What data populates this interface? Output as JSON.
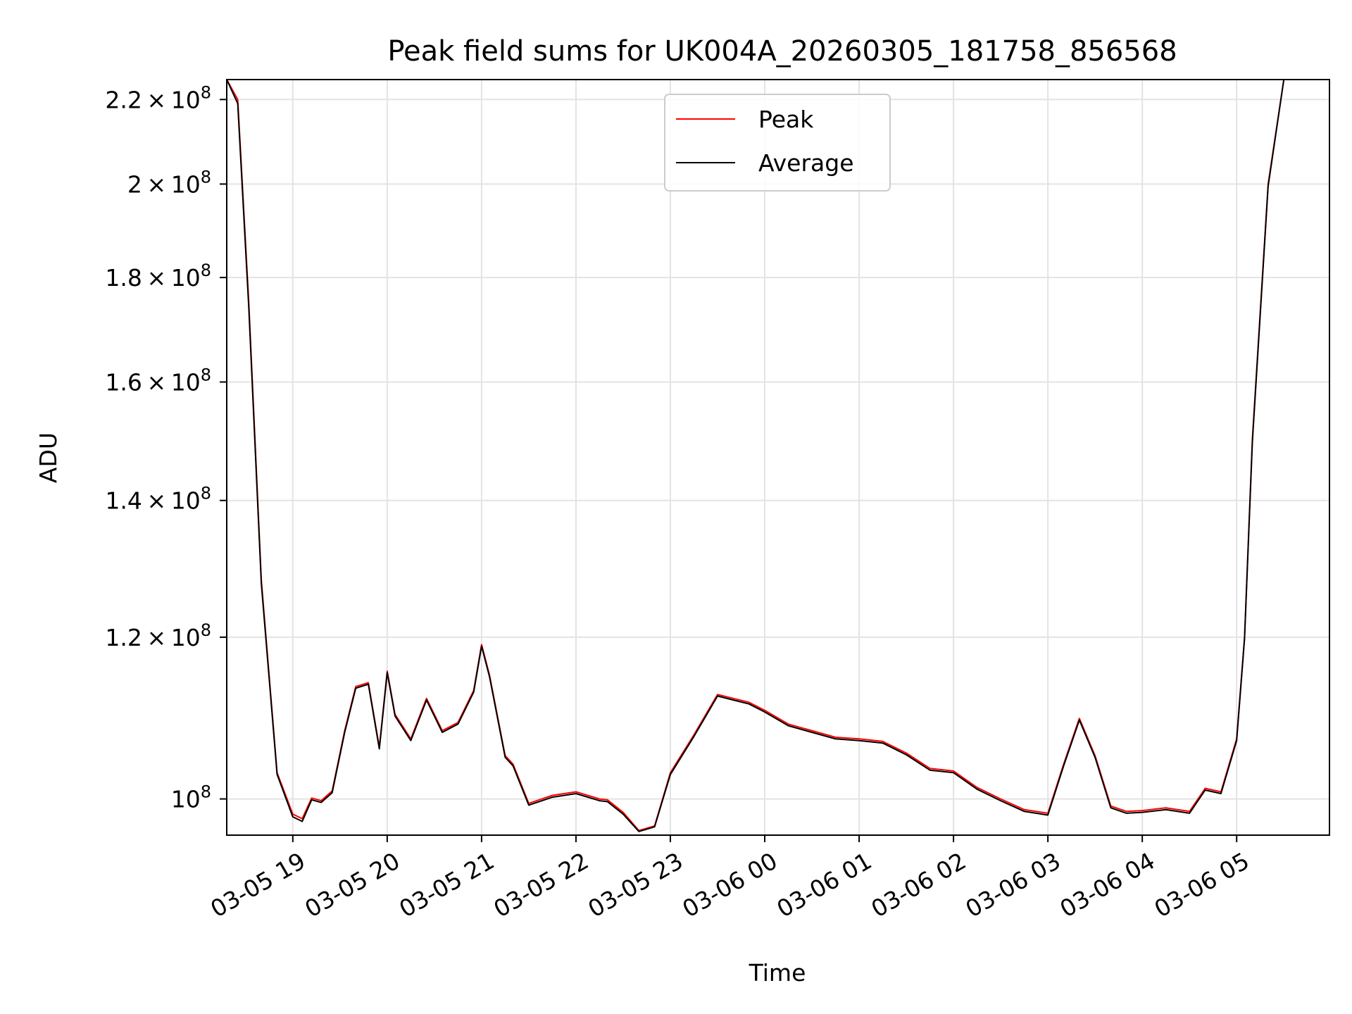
{
  "chart_data": {
    "type": "line",
    "title": "Peak field sums for UK004A_20260305_181758_856568",
    "xlabel": "Time",
    "ylabel": "ADU",
    "x_scale": "time",
    "y_scale": "log",
    "xlim": [
      "03-05 18:18",
      "03-06 05:59"
    ],
    "ylim": [
      96000000,
      225000000
    ],
    "grid": true,
    "legend_position": "top-center",
    "x_ticks": [
      {
        "t": "03-05 19:00",
        "label": "03-05 19"
      },
      {
        "t": "03-05 20:00",
        "label": "03-05 20"
      },
      {
        "t": "03-05 21:00",
        "label": "03-05 21"
      },
      {
        "t": "03-05 22:00",
        "label": "03-05 22"
      },
      {
        "t": "03-05 23:00",
        "label": "03-05 23"
      },
      {
        "t": "03-06 00:00",
        "label": "03-06 00"
      },
      {
        "t": "03-06 01:00",
        "label": "03-06 01"
      },
      {
        "t": "03-06 02:00",
        "label": "03-06 02"
      },
      {
        "t": "03-06 03:00",
        "label": "03-06 03"
      },
      {
        "t": "03-06 04:00",
        "label": "03-06 04"
      },
      {
        "t": "03-06 05:00",
        "label": "03-06 05"
      }
    ],
    "y_ticks": [
      {
        "value": 100000000,
        "mantissa": "",
        "exp": "8"
      },
      {
        "value": 120000000,
        "mantissa": "1.2",
        "exp": "8"
      },
      {
        "value": 140000000,
        "mantissa": "1.4",
        "exp": "8"
      },
      {
        "value": 160000000,
        "mantissa": "1.6",
        "exp": "8"
      },
      {
        "value": 180000000,
        "mantissa": "1.8",
        "exp": "8"
      },
      {
        "value": 200000000,
        "mantissa": "2",
        "exp": "8"
      },
      {
        "value": 220000000,
        "mantissa": "2.2",
        "exp": "8"
      }
    ],
    "series": [
      {
        "name": "Peak",
        "color": "#ff0000",
        "x": [
          "03-05 18:18",
          "03-05 18:25",
          "03-05 18:32",
          "03-05 18:40",
          "03-05 18:50",
          "03-05 19:00",
          "03-05 19:06",
          "03-05 19:12",
          "03-05 19:18",
          "03-05 19:25",
          "03-05 19:33",
          "03-05 19:40",
          "03-05 19:48",
          "03-05 19:55",
          "03-05 20:00",
          "03-05 20:05",
          "03-05 20:15",
          "03-05 20:25",
          "03-05 20:35",
          "03-05 20:45",
          "03-05 20:55",
          "03-05 21:00",
          "03-05 21:05",
          "03-05 21:15",
          "03-05 21:20",
          "03-05 21:30",
          "03-05 21:45",
          "03-05 22:00",
          "03-05 22:15",
          "03-05 22:20",
          "03-05 22:30",
          "03-05 22:40",
          "03-05 22:50",
          "03-05 23:00",
          "03-05 23:15",
          "03-05 23:30",
          "03-05 23:40",
          "03-05 23:50",
          "03-06 00:00",
          "03-06 00:15",
          "03-06 00:30",
          "03-06 00:45",
          "03-06 01:00",
          "03-06 01:15",
          "03-06 01:30",
          "03-06 01:45",
          "03-06 02:00",
          "03-06 02:15",
          "03-06 02:30",
          "03-06 02:45",
          "03-06 03:00",
          "03-06 03:10",
          "03-06 03:20",
          "03-06 03:30",
          "03-06 03:40",
          "03-06 03:50",
          "03-06 04:00",
          "03-06 04:15",
          "03-06 04:30",
          "03-06 04:40",
          "03-06 04:50",
          "03-06 05:00",
          "03-06 05:05",
          "03-06 05:10",
          "03-06 05:20",
          "03-06 05:30",
          "03-06 05:40",
          "03-06 05:50",
          "03-06 05:59"
        ],
        "y": [
          225000000,
          220000000,
          175000000,
          128000000,
          103000000,
          98300000,
          97800000,
          100100000,
          99800000,
          100900000,
          108000000,
          113500000,
          114000000,
          106000000,
          115500000,
          110000000,
          107000000,
          112000000,
          108000000,
          109000000,
          113000000,
          119000000,
          115000000,
          105000000,
          104000000,
          99500000,
          100400000,
          100800000,
          100000000,
          99900000,
          98500000,
          96500000,
          97000000,
          103000000,
          107500000,
          112500000,
          112000000,
          111500000,
          110500000,
          108800000,
          108000000,
          107200000,
          107000000,
          106700000,
          105300000,
          103500000,
          103200000,
          101300000,
          100000000,
          98800000,
          98400000,
          104000000,
          109500000,
          105000000,
          99200000,
          98600000,
          98700000,
          99000000,
          98600000,
          101200000,
          100800000,
          107000000,
          120000000,
          150000000,
          200000000,
          225000000,
          225000000,
          225000000,
          225000000
        ]
      },
      {
        "name": "Average",
        "color": "#000000",
        "x": [
          "03-05 18:18",
          "03-05 18:25",
          "03-05 18:32",
          "03-05 18:40",
          "03-05 18:50",
          "03-05 19:00",
          "03-05 19:06",
          "03-05 19:12",
          "03-05 19:18",
          "03-05 19:25",
          "03-05 19:33",
          "03-05 19:40",
          "03-05 19:48",
          "03-05 19:55",
          "03-05 20:00",
          "03-05 20:05",
          "03-05 20:15",
          "03-05 20:25",
          "03-05 20:35",
          "03-05 20:45",
          "03-05 20:55",
          "03-05 21:00",
          "03-05 21:05",
          "03-05 21:15",
          "03-05 21:20",
          "03-05 21:30",
          "03-05 21:45",
          "03-05 22:00",
          "03-05 22:15",
          "03-05 22:20",
          "03-05 22:30",
          "03-05 22:40",
          "03-05 22:50",
          "03-05 23:00",
          "03-05 23:15",
          "03-05 23:30",
          "03-05 23:40",
          "03-05 23:50",
          "03-06 00:00",
          "03-06 00:15",
          "03-06 00:30",
          "03-06 00:45",
          "03-06 01:00",
          "03-06 01:15",
          "03-06 01:30",
          "03-06 01:45",
          "03-06 02:00",
          "03-06 02:15",
          "03-06 02:30",
          "03-06 02:45",
          "03-06 03:00",
          "03-06 03:10",
          "03-06 03:20",
          "03-06 03:30",
          "03-06 03:40",
          "03-06 03:50",
          "03-06 04:00",
          "03-06 04:15",
          "03-06 04:30",
          "03-06 04:40",
          "03-06 04:50",
          "03-06 05:00",
          "03-06 05:05",
          "03-06 05:10",
          "03-06 05:20",
          "03-06 05:30",
          "03-06 05:40",
          "03-06 05:50",
          "03-06 05:59"
        ],
        "y": [
          225000000,
          219000000,
          174000000,
          127500000,
          102800000,
          98000000,
          97500000,
          99900000,
          99600000,
          100700000,
          107800000,
          113300000,
          113800000,
          105800000,
          115300000,
          109800000,
          106800000,
          111800000,
          107800000,
          108800000,
          112800000,
          118800000,
          114800000,
          104800000,
          103800000,
          99300000,
          100200000,
          100600000,
          99800000,
          99700000,
          98300000,
          96400000,
          96900000,
          102800000,
          107300000,
          112300000,
          111800000,
          111300000,
          110300000,
          108600000,
          107800000,
          107000000,
          106800000,
          106500000,
          105100000,
          103300000,
          103000000,
          101100000,
          99800000,
          98600000,
          98200000,
          103800000,
          109300000,
          104800000,
          99000000,
          98400000,
          98500000,
          98800000,
          98400000,
          101000000,
          100600000,
          106800000,
          119800000,
          149500000,
          199500000,
          225000000,
          225000000,
          225000000,
          225000000
        ]
      }
    ]
  }
}
